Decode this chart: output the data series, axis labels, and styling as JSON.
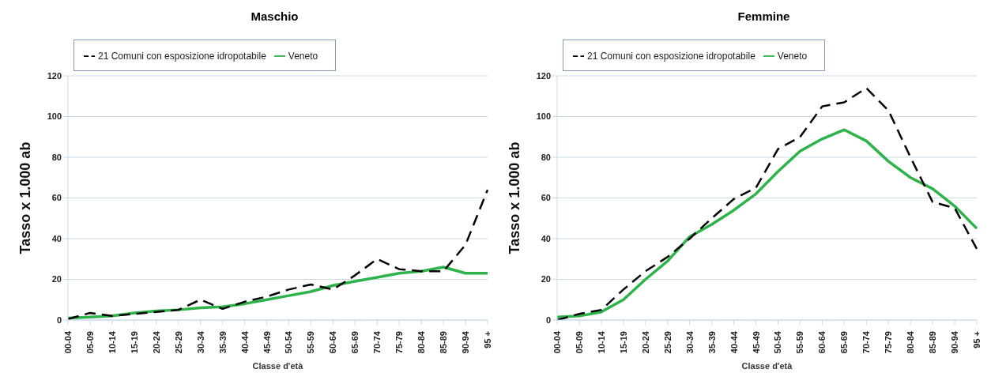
{
  "chart_data": [
    {
      "type": "line",
      "title": "Maschio",
      "xlabel": "Classe d'età",
      "ylabel": "Tasso x 1.000 ab",
      "categories": [
        "00-04",
        "05-09",
        "10-14",
        "15-19",
        "20-24",
        "25-29",
        "30-34",
        "35-39",
        "40-44",
        "45-49",
        "50-54",
        "55-59",
        "60-64",
        "65-69",
        "70-74",
        "75-79",
        "80-84",
        "85-89",
        "90-94",
        "95 +"
      ],
      "series": [
        {
          "name": "Veneto",
          "color": "#2db34a",
          "line_style": "solid",
          "values": [
            1,
            1.5,
            2,
            3.5,
            4.5,
            5,
            6,
            6.5,
            8,
            10,
            12,
            14,
            17,
            19,
            21,
            23,
            24,
            26,
            23,
            23
          ]
        },
        {
          "name": "21 Comuni con esposizione idropotabile",
          "color": "#000000",
          "line_style": "dashed",
          "values": [
            0.5,
            3.5,
            2,
            3,
            4,
            5,
            10,
            5.5,
            9,
            11.5,
            15,
            17.5,
            15,
            22,
            30,
            25,
            24,
            24,
            37,
            64
          ]
        }
      ],
      "ylim": [
        0,
        120
      ],
      "yticks": [
        0,
        20,
        40,
        60,
        80,
        100,
        120
      ],
      "grid": "y",
      "legend": "top left",
      "marker": "none"
    },
    {
      "type": "line",
      "title": "Femmine",
      "xlabel": "Classe d'età",
      "ylabel": "Tasso x 1.000 ab",
      "categories": [
        "00-04",
        "05-09",
        "10-14",
        "15-19",
        "20-24",
        "25-29",
        "30-34",
        "35-39",
        "40-44",
        "45-49",
        "50-54",
        "55-59",
        "60-64",
        "65-69",
        "70-74",
        "75-79",
        "80-84",
        "85-89",
        "90-94",
        "95 +"
      ],
      "series": [
        {
          "name": "Veneto",
          "color": "#2db34a",
          "line_style": "solid",
          "values": [
            1.5,
            2,
            4,
            10,
            20,
            29,
            41,
            47,
            54,
            62,
            73,
            83,
            89,
            93.5,
            88,
            78,
            70,
            64.5,
            56,
            45
          ]
        },
        {
          "name": "21 Comuni con esposizione idropotabile",
          "color": "#000000",
          "line_style": "dashed",
          "values": [
            0,
            3,
            5,
            15,
            24,
            31,
            40,
            50,
            59.5,
            65,
            84,
            90,
            105,
            107,
            114,
            103,
            80,
            58,
            55,
            35
          ]
        }
      ],
      "ylim": [
        0,
        120
      ],
      "yticks": [
        0,
        20,
        40,
        60,
        80,
        100,
        120
      ],
      "grid": "y",
      "legend": "top left",
      "marker": "none"
    }
  ]
}
